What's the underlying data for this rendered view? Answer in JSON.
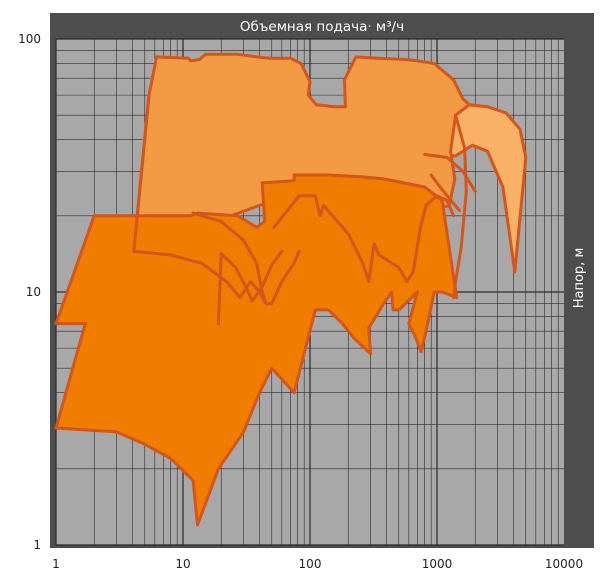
{
  "chart_data": {
    "type": "area",
    "title": "Объемная подача· м³/ч",
    "xlabel": "",
    "ylabel": "Напор, м",
    "xscale": "log",
    "yscale": "log",
    "xlim": [
      1,
      10000
    ],
    "ylim": [
      1,
      100
    ],
    "x_tick_labels": [
      "1",
      "10",
      "100",
      "1000",
      "10000"
    ],
    "x_tick_values": [
      1,
      10,
      100,
      1000,
      10000
    ],
    "y_tick_labels": [
      "1",
      "10",
      "100"
    ],
    "y_tick_values": [
      1,
      10,
      100
    ],
    "grid": true,
    "colors": {
      "frame": "#4d4d4d",
      "plot_background": "#a8a8a8",
      "grid": "#2b2b2b",
      "outline": "#d4561a",
      "fill_light": "#f9b067",
      "fill_mid": "#f39a45",
      "fill_dark": "#f07c00",
      "title_text": "#ffffff",
      "tick_text": "#222222"
    },
    "series": [
      {
        "fill": "fill_light",
        "points": [
          [
            390,
            59
          ],
          [
            700,
            58.5
          ],
          [
            1100,
            57
          ],
          [
            1500,
            55.5
          ],
          [
            2500,
            54
          ],
          [
            3500,
            51
          ],
          [
            4500,
            44
          ],
          [
            5000,
            34
          ],
          [
            4100,
            12
          ],
          [
            3300,
            26
          ],
          [
            2500,
            36
          ],
          [
            1900,
            38
          ],
          [
            1400,
            34.5
          ],
          [
            800,
            35
          ],
          [
            380,
            34.5
          ]
        ]
      },
      {
        "fill": "fill_mid",
        "points": [
          [
            5.4,
            60
          ],
          [
            6.2,
            85
          ],
          [
            11,
            84
          ],
          [
            11.5,
            82
          ],
          [
            13.5,
            83
          ],
          [
            15,
            87
          ],
          [
            27,
            87
          ],
          [
            38,
            85
          ],
          [
            48,
            84
          ],
          [
            70,
            84
          ],
          [
            85,
            80
          ],
          [
            100,
            68
          ],
          [
            97,
            60
          ],
          [
            112,
            55
          ],
          [
            155,
            54
          ],
          [
            190,
            54
          ],
          [
            187,
            69
          ],
          [
            230,
            85
          ],
          [
            340,
            84
          ],
          [
            560,
            83
          ],
          [
            700,
            82
          ],
          [
            950,
            80
          ],
          [
            1350,
            69
          ],
          [
            1600,
            58
          ],
          [
            1800,
            55
          ],
          [
            1400,
            50
          ],
          [
            1280,
            36
          ],
          [
            1380,
            28
          ],
          [
            1250,
            22
          ],
          [
            900,
            21
          ],
          [
            700,
            19
          ],
          [
            500,
            22
          ],
          [
            400,
            23
          ],
          [
            200,
            23
          ],
          [
            130,
            25
          ],
          [
            80,
            24.5
          ],
          [
            40,
            22
          ],
          [
            4.1,
            14.5
          ]
        ]
      },
      {
        "fill": "fill_dark",
        "points": [
          [
            1,
            7.5
          ],
          [
            2.0,
            20
          ],
          [
            11.5,
            20
          ],
          [
            13,
            20.5
          ],
          [
            27,
            20
          ],
          [
            38,
            18
          ],
          [
            44,
            19
          ],
          [
            42,
            27
          ],
          [
            75,
            27.5
          ],
          [
            75,
            29
          ],
          [
            140,
            29
          ],
          [
            260,
            28.5
          ],
          [
            380,
            28
          ],
          [
            800,
            26
          ],
          [
            1100,
            23
          ],
          [
            1200,
            17
          ],
          [
            1300,
            13
          ],
          [
            1430,
            9.5
          ],
          [
            1100,
            10
          ],
          [
            950,
            10
          ],
          [
            820,
            7
          ],
          [
            750,
            5.8
          ],
          [
            680,
            6.6
          ],
          [
            600,
            7.5
          ],
          [
            700,
            10
          ],
          [
            500,
            8.5
          ],
          [
            450,
            8.5
          ],
          [
            440,
            10
          ],
          [
            380,
            9
          ],
          [
            290,
            7.2
          ],
          [
            300,
            5.7
          ],
          [
            220,
            6.6
          ],
          [
            180,
            7.5
          ],
          [
            140,
            8.5
          ],
          [
            110,
            8.5
          ],
          [
            75,
            4
          ],
          [
            50,
            5
          ],
          [
            40,
            4
          ],
          [
            30,
            2.8
          ],
          [
            19,
            2
          ],
          [
            13,
            1.2
          ],
          [
            12,
            1.8
          ],
          [
            8,
            2.2
          ],
          [
            5,
            2.5
          ],
          [
            3,
            2.8
          ],
          [
            1,
            2.9
          ],
          [
            1.7,
            7.5
          ]
        ]
      },
      {
        "fill": "none",
        "points": [
          [
            5.4,
            60
          ],
          [
            4.1,
            14.5
          ]
        ]
      },
      {
        "fill": "none",
        "points": [
          [
            4.1,
            14.5
          ],
          [
            8,
            14
          ],
          [
            14,
            13
          ],
          [
            22,
            11
          ],
          [
            28,
            9.5
          ],
          [
            34,
            11
          ],
          [
            40,
            10
          ],
          [
            45,
            9
          ]
        ]
      },
      {
        "fill": "none",
        "points": [
          [
            12,
            20.5
          ],
          [
            20,
            19
          ],
          [
            30,
            16
          ],
          [
            38,
            13
          ],
          [
            42,
            10
          ],
          [
            45,
            9
          ],
          [
            50,
            9
          ],
          [
            60,
            11
          ],
          [
            75,
            13
          ],
          [
            82,
            14.5
          ]
        ]
      },
      {
        "fill": "none",
        "points": [
          [
            19,
            7.5
          ],
          [
            20,
            14.2
          ],
          [
            26,
            12.5
          ],
          [
            32,
            10.2
          ],
          [
            35,
            9.2
          ],
          [
            42,
            10.5
          ],
          [
            50,
            12.8
          ],
          [
            60,
            14.5
          ]
        ]
      },
      {
        "fill": "none",
        "points": [
          [
            52,
            18
          ],
          [
            82,
            24
          ],
          [
            110,
            24
          ],
          [
            120,
            20
          ],
          [
            128,
            22
          ],
          [
            150,
            20
          ],
          [
            200,
            17
          ],
          [
            260,
            13
          ],
          [
            290,
            11
          ],
          [
            320,
            15.5
          ],
          [
            350,
            14
          ],
          [
            500,
            12.5
          ],
          [
            580,
            11
          ],
          [
            650,
            12
          ],
          [
            740,
            18
          ],
          [
            820,
            22
          ],
          [
            1000,
            24
          ],
          [
            1200,
            23
          ],
          [
            1350,
            20
          ]
        ]
      },
      {
        "fill": "none",
        "points": [
          [
            900,
            29
          ],
          [
            1000,
            27
          ],
          [
            1200,
            24
          ],
          [
            1500,
            21
          ]
        ]
      },
      {
        "fill": "none",
        "points": [
          [
            1400,
            50
          ],
          [
            1650,
            37
          ],
          [
            1700,
            25
          ],
          [
            1550,
            15
          ],
          [
            1400,
            11
          ],
          [
            1350,
            9.5
          ]
        ]
      },
      {
        "fill": "none",
        "points": [
          [
            800,
            35
          ],
          [
            1200,
            34
          ],
          [
            1600,
            30
          ],
          [
            2000,
            25
          ]
        ]
      }
    ]
  }
}
